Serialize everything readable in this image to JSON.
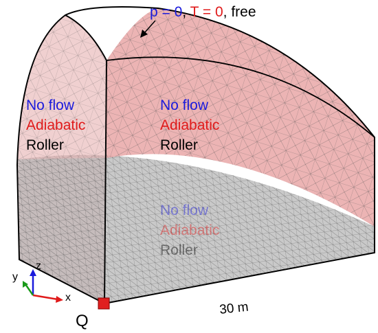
{
  "top_label": {
    "parts": [
      {
        "text": "p = 0",
        "color": "#1a1adc"
      },
      {
        "text": ", ",
        "color": "#000000"
      },
      {
        "text": "T = 0",
        "color": "#e01a1a"
      },
      {
        "text": ", free",
        "color": "#000000"
      }
    ]
  },
  "boundary_labels": [
    {
      "lines": [
        {
          "text": "No flow",
          "color": "#1a1adc"
        },
        {
          "text": "Adiabatic",
          "color": "#e01a1a"
        },
        {
          "text": "Roller",
          "color": "#000000"
        }
      ]
    },
    {
      "lines": [
        {
          "text": "No flow",
          "color": "#1a1adc"
        },
        {
          "text": "Adiabatic",
          "color": "#e01a1a"
        },
        {
          "text": "Roller",
          "color": "#000000"
        }
      ]
    },
    {
      "lines": [
        {
          "text": "No flow",
          "color": "#1a1adc"
        },
        {
          "text": "Adiabatic",
          "color": "#e01a1a"
        },
        {
          "text": "Roller",
          "color": "#000000"
        }
      ]
    }
  ],
  "axes": {
    "x": "x",
    "y": "y",
    "z": "z"
  },
  "length_label": "30 m",
  "point_label": "Q"
}
